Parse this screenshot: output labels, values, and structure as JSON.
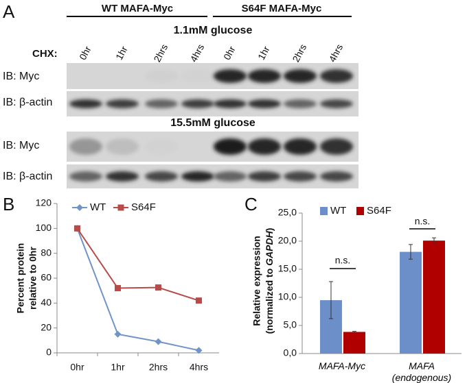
{
  "panel_a": {
    "label": "A",
    "groups": [
      "WT MAFA-Myc",
      "S64F MAFA-Myc"
    ],
    "conditions": [
      "1.1mM glucose",
      "15.5mM glucose"
    ],
    "chx_label": "CHX:",
    "timepoints": [
      "0hr",
      "1hr",
      "2hrs",
      "4hrs",
      "0hr",
      "1hr",
      "2hrs",
      "4hrs"
    ],
    "row_labels": [
      "IB: Myc",
      "IB: β-actin",
      "IB: Myc",
      "IB: β-actin"
    ]
  },
  "chart_data": [
    {
      "type": "line",
      "panel_label": "B",
      "y_label": [
        "Percent protein",
        "relative to 0hr"
      ],
      "categories": [
        "0hr",
        "1hr",
        "2hrs",
        "4hrs"
      ],
      "series": [
        {
          "name": "WT",
          "color": "#7094c8",
          "marker": "diamond",
          "values": [
            100,
            15,
            9,
            2
          ]
        },
        {
          "name": "S64F",
          "color": "#b84a47",
          "marker": "square",
          "values": [
            100,
            52,
            52.5,
            42
          ]
        }
      ],
      "ylim": [
        0,
        120
      ],
      "yticks": [
        0,
        20,
        40,
        60,
        80,
        100,
        120
      ],
      "grid": false,
      "legend": "top"
    },
    {
      "type": "bar",
      "panel_label": "C",
      "y_label": [
        "Relative expression",
        "(normalized to ",
        "GAPDH",
        ")"
      ],
      "categories": [
        "MAFA-Myc",
        "MAFA (endogenous)"
      ],
      "series": [
        {
          "name": "WT",
          "color": "#6d8fc9",
          "values": [
            9.5,
            18.1
          ],
          "errors": [
            3.3,
            1.3
          ]
        },
        {
          "name": "S64F",
          "color": "#b00000",
          "values": [
            3.85,
            20.1
          ],
          "errors": [
            0.1,
            0.5
          ]
        }
      ],
      "annotations": [
        "n.s.",
        "n.s."
      ],
      "ylim": [
        0,
        25
      ],
      "yticks": [
        {
          "value": 0,
          "label": "0,0"
        },
        {
          "value": 5,
          "label": "5,0"
        },
        {
          "value": 10,
          "label": "10,0"
        },
        {
          "value": 15,
          "label": "15,0"
        },
        {
          "value": 20,
          "label": "20,0"
        },
        {
          "value": 25,
          "label": "25,0"
        }
      ],
      "grid": false,
      "legend": "top"
    }
  ]
}
